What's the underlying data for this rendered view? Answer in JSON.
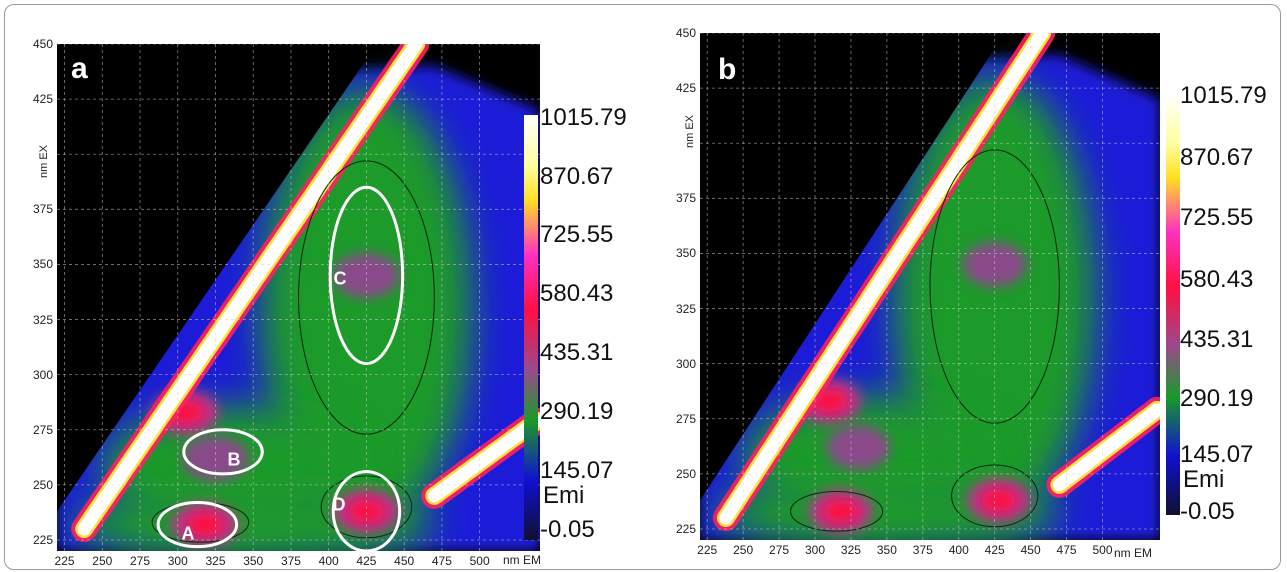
{
  "chart_data": [
    {
      "type": "heatmap",
      "panel": "a",
      "xlabel": "nm EM",
      "ylabel": "nm EX",
      "x_ticks": [
        "225",
        "250",
        "275",
        "300",
        "325",
        "350",
        "375",
        "400",
        "425",
        "450",
        "475",
        "500"
      ],
      "y_ticks": [
        "450",
        "425",
        "375",
        "350",
        "325",
        "300",
        "275",
        "250",
        "225"
      ],
      "xlim": [
        220,
        540
      ],
      "ylim": [
        220,
        450
      ],
      "grid": true,
      "colorbar": {
        "label": "Emi",
        "ticks": [
          "1015.79",
          "870.67",
          "725.55",
          "580.43",
          "435.31",
          "290.19",
          "145.07",
          "-0.05"
        ]
      },
      "regions": [
        {
          "label": "A",
          "em_center": 313,
          "ex_center": 232,
          "intensity": 600
        },
        {
          "label": "B",
          "em_center": 330,
          "ex_center": 265,
          "intensity": 320
        },
        {
          "label": "C",
          "em_center": 425,
          "ex_center": 345,
          "intensity": 430
        },
        {
          "label": "D",
          "em_center": 425,
          "ex_center": 238,
          "intensity": 620
        }
      ],
      "peaks": [
        {
          "em": 305,
          "ex": 283,
          "intensity": 640
        },
        {
          "em": 318,
          "ex": 232,
          "intensity": 620
        },
        {
          "em": 425,
          "ex": 238,
          "intensity": 650
        },
        {
          "em": 425,
          "ex": 345,
          "intensity": 440
        },
        {
          "em": 325,
          "ex": 262,
          "intensity": 320
        }
      ]
    },
    {
      "type": "heatmap",
      "panel": "b",
      "xlabel": "nm EM",
      "ylabel": "nm EX",
      "x_ticks": [
        "225",
        "250",
        "275",
        "300",
        "325",
        "350",
        "375",
        "400",
        "425",
        "450",
        "475",
        "500"
      ],
      "y_ticks": [
        "450",
        "425",
        "375",
        "350",
        "325",
        "300",
        "275",
        "250",
        "225"
      ],
      "xlim": [
        220,
        540
      ],
      "ylim": [
        220,
        450
      ],
      "grid": true,
      "colorbar": {
        "label": "Emi",
        "ticks": [
          "1015.79",
          "870.67",
          "725.55",
          "580.43",
          "435.31",
          "290.19",
          "145.07",
          "Emi",
          "-0.05"
        ]
      },
      "peaks": [
        {
          "em": 310,
          "ex": 283,
          "intensity": 600
        },
        {
          "em": 318,
          "ex": 233,
          "intensity": 620
        },
        {
          "em": 428,
          "ex": 238,
          "intensity": 660
        },
        {
          "em": 425,
          "ex": 345,
          "intensity": 440
        },
        {
          "em": 330,
          "ex": 262,
          "intensity": 300
        }
      ]
    }
  ],
  "panels": {
    "a": {
      "letter": "a",
      "xlabel": "nm EM",
      "ylabel": "nm EX",
      "regions": {
        "A": "A",
        "B": "B",
        "C": "C",
        "D": "D"
      },
      "colorbar": {
        "t0": "1015.79",
        "t1": "870.67",
        "t2": "725.55",
        "t3": "580.43",
        "t4": "435.31",
        "t5": "290.19",
        "t6": "145.07",
        "unit": "Emi",
        "t7": "-0.05"
      }
    },
    "b": {
      "letter": "b",
      "xlabel": "nm EM",
      "ylabel": "nm EX",
      "colorbar": {
        "t0": "1015.79",
        "t1": "870.67",
        "t2": "725.55",
        "t3": "580.43",
        "t4": "435.31",
        "t5": "290.19",
        "t6": "145.07",
        "unit": "Emi",
        "t7": "-0.05"
      }
    }
  },
  "colors": {
    "background": "#000000",
    "low": "#1010d0",
    "mid": "#1a9a2a",
    "high": "#ff1060",
    "peak": "#ffffff",
    "annotation": "#ffffff"
  }
}
